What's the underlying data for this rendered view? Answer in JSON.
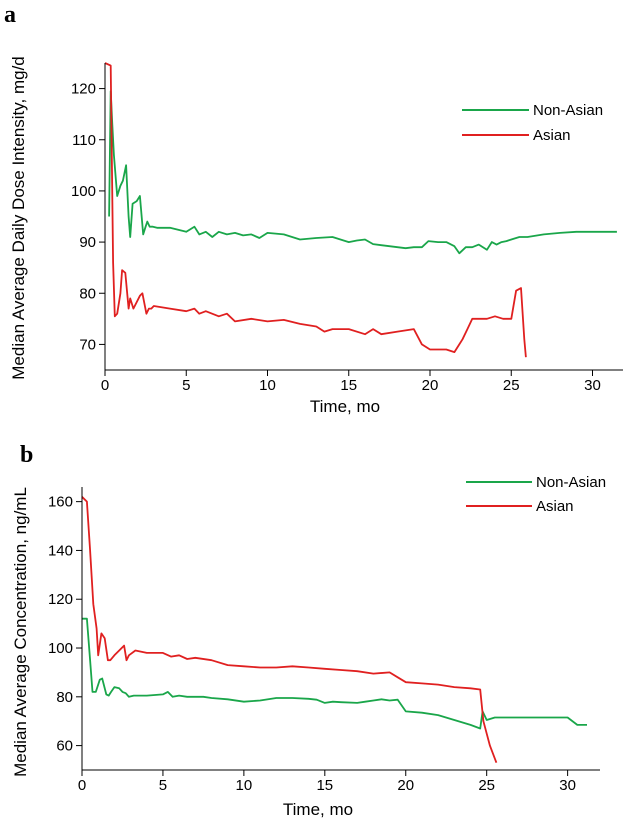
{
  "chart_data": [
    {
      "panel": "a",
      "type": "line",
      "xlabel": "Time, mo",
      "ylabel": "Median Average Daily Dose Intensity, mg/d",
      "xlim": [
        0,
        32
      ],
      "ylim": [
        65,
        125
      ],
      "xticks": [
        0,
        5,
        10,
        15,
        20,
        25,
        30
      ],
      "yticks": [
        70,
        80,
        90,
        100,
        110,
        120
      ],
      "grid": false,
      "legend_position": "top-right",
      "series": [
        {
          "name": "Non-Asian",
          "color": "#1aa64a",
          "x": [
            0.25,
            0.35,
            0.45,
            0.55,
            0.75,
            0.95,
            1.1,
            1.3,
            1.45,
            1.55,
            1.7,
            1.95,
            2.15,
            2.35,
            2.5,
            2.6,
            2.75,
            2.95,
            3.2,
            4.0,
            5.0,
            5.5,
            5.8,
            6.2,
            6.6,
            7.0,
            7.5,
            8.0,
            8.5,
            9.0,
            9.5,
            10.0,
            11.0,
            12.0,
            13.0,
            14.0,
            15.0,
            15.5,
            16.0,
            16.5,
            17.0,
            17.5,
            18.0,
            18.5,
            19.0,
            19.5,
            19.9,
            20.5,
            21.0,
            21.5,
            21.8,
            22.2,
            22.6,
            23.0,
            23.5,
            23.8,
            24.1,
            24.4,
            24.7,
            25.0,
            25.5,
            26.0,
            27.0,
            28.0,
            29.0,
            30.0,
            31.5
          ],
          "values": [
            95.0,
            119.5,
            113.0,
            107.0,
            99.0,
            101.0,
            102.0,
            105.0,
            95.0,
            91.0,
            97.5,
            98.0,
            99.0,
            91.5,
            93.0,
            94.0,
            93.0,
            93.0,
            92.8,
            92.8,
            92.0,
            93.0,
            91.5,
            92.0,
            91.0,
            92.0,
            91.5,
            91.8,
            91.3,
            91.5,
            90.8,
            91.8,
            91.5,
            90.5,
            90.8,
            91.0,
            90.0,
            90.3,
            90.5,
            89.6,
            89.4,
            89.2,
            89.0,
            88.8,
            89.0,
            89.0,
            90.2,
            90.0,
            90.0,
            89.2,
            87.8,
            89.0,
            89.0,
            89.5,
            88.5,
            90.0,
            89.5,
            90.0,
            90.2,
            90.5,
            91.0,
            91.0,
            91.5,
            91.8,
            92.0,
            92.0,
            92.0
          ]
        },
        {
          "name": "Asian",
          "color": "#e02020",
          "x": [
            0.0,
            0.35,
            0.5,
            0.6,
            0.75,
            0.95,
            1.05,
            1.25,
            1.45,
            1.55,
            1.75,
            2.15,
            2.3,
            2.55,
            2.7,
            2.85,
            3.0,
            4.0,
            5.0,
            5.5,
            5.8,
            6.2,
            7.0,
            7.5,
            8.0,
            9.0,
            10.0,
            11.0,
            12.0,
            13.0,
            13.5,
            14.0,
            15.0,
            16.0,
            16.5,
            17.0,
            18.0,
            19.0,
            19.5,
            20.0,
            20.5,
            21.0,
            21.5,
            21.8,
            22.0,
            22.3,
            22.6,
            23.0,
            23.5,
            24.0,
            24.5,
            25.0,
            25.3,
            25.6,
            25.8,
            25.9
          ],
          "values": [
            125.0,
            124.5,
            86.0,
            75.5,
            76.0,
            80.0,
            84.5,
            84.0,
            77.0,
            79.0,
            77.0,
            79.5,
            80.0,
            76.0,
            77.0,
            77.0,
            77.5,
            77.0,
            76.5,
            77.0,
            76.0,
            76.5,
            75.5,
            76.0,
            74.5,
            75.0,
            74.5,
            74.8,
            74.0,
            73.5,
            72.5,
            73.0,
            73.0,
            72.0,
            73.0,
            72.0,
            72.5,
            73.0,
            70.0,
            69.0,
            69.0,
            69.0,
            68.5,
            70.0,
            71.0,
            73.0,
            75.0,
            75.0,
            75.0,
            75.5,
            75.0,
            75.0,
            80.5,
            81.0,
            71.0,
            67.5
          ]
        }
      ]
    },
    {
      "panel": "b",
      "type": "line",
      "xlabel": "Time, mo",
      "ylabel": "Median Average Concentration, ng/mL",
      "xlim": [
        0,
        32
      ],
      "ylim": [
        50,
        166
      ],
      "xticks": [
        0,
        5,
        10,
        15,
        20,
        25,
        30
      ],
      "yticks": [
        60,
        80,
        100,
        120,
        140,
        160
      ],
      "grid": false,
      "legend_position": "top-right",
      "series": [
        {
          "name": "Non-Asian",
          "color": "#1aa64a",
          "x": [
            0.0,
            0.3,
            0.5,
            0.65,
            0.85,
            1.1,
            1.25,
            1.5,
            1.65,
            1.8,
            2.0,
            2.3,
            2.5,
            2.7,
            2.9,
            3.2,
            4.0,
            5.0,
            5.3,
            5.6,
            6.0,
            6.5,
            7.0,
            7.5,
            8.0,
            9.0,
            10.0,
            11.0,
            12.0,
            13.0,
            14.0,
            14.5,
            15.0,
            15.5,
            16.0,
            17.0,
            17.5,
            18.0,
            18.5,
            19.0,
            19.5,
            20.0,
            21.0,
            22.0,
            23.0,
            24.0,
            24.6,
            24.75,
            25.0,
            25.5,
            26.0,
            28.0,
            30.0,
            30.6,
            31.2
          ],
          "values": [
            112.0,
            112.0,
            95.0,
            82.0,
            82.0,
            87.0,
            87.5,
            81.0,
            80.5,
            82.0,
            84.0,
            83.5,
            82.0,
            81.5,
            80.0,
            80.5,
            80.5,
            81.0,
            82.0,
            80.0,
            80.5,
            80.0,
            80.0,
            80.0,
            79.5,
            79.0,
            78.0,
            78.5,
            79.5,
            79.5,
            79.2,
            78.8,
            77.5,
            78.0,
            77.8,
            77.5,
            78.0,
            78.5,
            79.0,
            78.5,
            78.8,
            74.0,
            73.5,
            72.5,
            70.5,
            68.5,
            67.0,
            74.0,
            70.5,
            71.5,
            71.5,
            71.5,
            71.5,
            68.5,
            68.5
          ]
        },
        {
          "name": "Asian",
          "color": "#e02020",
          "x": [
            0.0,
            0.3,
            0.5,
            0.7,
            0.9,
            1.0,
            1.2,
            1.4,
            1.6,
            1.75,
            2.0,
            2.3,
            2.6,
            2.75,
            2.9,
            3.3,
            4.0,
            5.0,
            5.5,
            6.0,
            6.5,
            7.0,
            8.0,
            9.0,
            10.0,
            11.0,
            12.0,
            13.0,
            14.0,
            15.0,
            16.0,
            17.0,
            18.0,
            19.0,
            19.5,
            20.0,
            21.0,
            22.0,
            23.0,
            24.0,
            24.6,
            24.8,
            25.2,
            25.6
          ],
          "values": [
            162.0,
            160.0,
            140.0,
            118.0,
            108.0,
            97.0,
            106.0,
            104.0,
            95.0,
            95.0,
            97.0,
            99.0,
            101.0,
            95.0,
            97.0,
            99.0,
            98.0,
            98.0,
            96.5,
            97.0,
            95.5,
            96.0,
            95.0,
            93.0,
            92.5,
            92.0,
            92.0,
            92.5,
            92.0,
            91.5,
            91.0,
            90.5,
            89.5,
            90.0,
            88.0,
            86.0,
            85.5,
            85.0,
            84.0,
            83.5,
            83.0,
            70.0,
            60.0,
            53.0
          ]
        }
      ]
    }
  ]
}
